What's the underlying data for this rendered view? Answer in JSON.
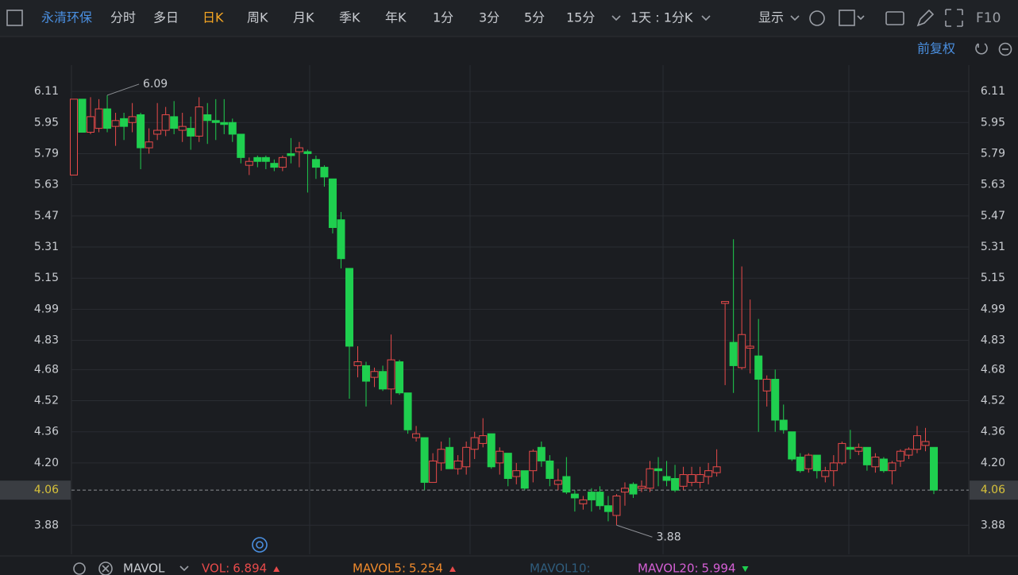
{
  "toolbar": {
    "stock": "永清环保",
    "periods": [
      "分时",
      "多日",
      "日K",
      "周K",
      "月K",
      "季K",
      "年K",
      "1分",
      "3分",
      "5分",
      "15分"
    ],
    "active_period": "日K",
    "range": "1天 : 1分K",
    "display": "显示",
    "f10": "F10"
  },
  "adjust": "前复权",
  "chart_data": {
    "type": "candlestick",
    "open": [
      5.68,
      6.07,
      5.9,
      5.92,
      6.02,
      5.93,
      5.97,
      5.95,
      5.99,
      5.82,
      5.89,
      5.91,
      5.98,
      5.91,
      5.92,
      5.88,
      5.99,
      5.96,
      5.95,
      5.95,
      5.89,
      5.73,
      5.77,
      5.77,
      5.74,
      5.72,
      5.79,
      5.8,
      5.8,
      5.76,
      5.72,
      5.66,
      5.45,
      5.2,
      4.7,
      4.7,
      4.64,
      4.67,
      4.58,
      4.72,
      4.56,
      4.33,
      4.33,
      4.1,
      4.2,
      4.28,
      4.17,
      4.18,
      4.27,
      4.3,
      4.35,
      4.2,
      4.25,
      4.13,
      4.16,
      4.16,
      4.28,
      4.21,
      4.09,
      4.13,
      4.04,
      3.99,
      4.05,
      4.05,
      3.98,
      3.93,
      4.05,
      4.09,
      4.07,
      4.07,
      4.17,
      4.13,
      4.12,
      4.08,
      4.1,
      4.1,
      4.13,
      4.15,
      5.02,
      4.82,
      4.69,
      4.79,
      4.75,
      4.57,
      4.63,
      4.42,
      4.36,
      4.23,
      4.17,
      4.24,
      4.13,
      4.16,
      4.2,
      4.28,
      4.26,
      4.28,
      4.18,
      4.22,
      4.16,
      4.21,
      4.24,
      4.27,
      4.29,
      4.28
    ],
    "high": [
      6.07,
      6.07,
      6.08,
      6.07,
      6.09,
      6.0,
      6.0,
      6.05,
      6.0,
      5.92,
      6.05,
      6.03,
      6.06,
      6.0,
      5.98,
      6.08,
      6.05,
      6.07,
      6.07,
      5.97,
      5.89,
      5.77,
      5.78,
      5.78,
      5.76,
      5.78,
      5.87,
      5.85,
      5.81,
      5.78,
      5.73,
      5.66,
      5.49,
      5.2,
      4.8,
      4.72,
      4.69,
      4.7,
      4.86,
      4.73,
      4.56,
      4.39,
      4.33,
      4.25,
      4.31,
      4.33,
      4.24,
      4.31,
      4.36,
      4.43,
      4.35,
      4.28,
      4.25,
      4.2,
      4.16,
      4.27,
      4.31,
      4.24,
      4.17,
      4.23,
      4.06,
      4.03,
      4.07,
      4.08,
      4.03,
      4.04,
      4.1,
      4.1,
      4.11,
      4.21,
      4.23,
      4.21,
      4.19,
      4.18,
      4.18,
      4.18,
      4.2,
      4.27,
      5.03,
      5.35,
      5.21,
      5.04,
      4.94,
      4.65,
      4.68,
      4.5,
      4.36,
      4.25,
      4.25,
      4.24,
      4.18,
      4.24,
      4.31,
      4.37,
      4.3,
      4.28,
      4.25,
      4.23,
      4.21,
      4.27,
      4.28,
      4.39,
      4.38,
      4.28
    ],
    "low": [
      5.68,
      5.9,
      5.89,
      5.9,
      5.9,
      5.83,
      5.86,
      5.9,
      5.71,
      5.79,
      5.86,
      5.88,
      5.89,
      5.85,
      5.81,
      5.85,
      5.84,
      5.86,
      5.89,
      5.85,
      5.74,
      5.68,
      5.72,
      5.71,
      5.7,
      5.7,
      5.74,
      5.72,
      5.59,
      5.66,
      5.62,
      5.38,
      5.2,
      4.53,
      4.64,
      4.49,
      4.59,
      4.57,
      4.5,
      4.55,
      4.35,
      4.31,
      4.06,
      4.1,
      4.16,
      4.17,
      4.14,
      4.14,
      4.22,
      4.28,
      4.17,
      4.14,
      4.08,
      4.09,
      4.06,
      4.1,
      4.18,
      4.08,
      4.06,
      4.04,
      3.95,
      3.96,
      3.95,
      3.96,
      3.9,
      3.88,
      3.98,
      4.02,
      4.05,
      4.05,
      4.08,
      4.08,
      4.05,
      4.06,
      4.08,
      4.07,
      4.09,
      4.13,
      4.6,
      4.56,
      4.68,
      4.66,
      4.36,
      4.49,
      4.36,
      4.35,
      4.21,
      4.15,
      4.15,
      4.12,
      4.1,
      4.08,
      4.19,
      4.22,
      4.24,
      4.16,
      4.15,
      4.15,
      4.09,
      4.18,
      4.22,
      4.25,
      4.26,
      4.04
    ],
    "close": [
      6.07,
      5.9,
      5.98,
      6.02,
      5.92,
      5.96,
      5.93,
      5.98,
      5.82,
      5.85,
      5.91,
      5.99,
      5.92,
      5.93,
      5.88,
      6.03,
      5.96,
      5.95,
      5.94,
      5.89,
      5.77,
      5.75,
      5.75,
      5.75,
      5.72,
      5.77,
      5.78,
      5.82,
      5.79,
      5.72,
      5.67,
      5.41,
      5.25,
      4.8,
      4.72,
      4.62,
      4.67,
      4.58,
      4.73,
      4.56,
      4.37,
      4.35,
      4.1,
      4.21,
      4.27,
      4.17,
      4.21,
      4.28,
      4.33,
      4.34,
      4.18,
      4.26,
      4.12,
      4.16,
      4.07,
      4.26,
      4.21,
      4.12,
      4.11,
      4.05,
      4.02,
      4.01,
      4.01,
      3.98,
      3.95,
      4.03,
      4.07,
      4.04,
      4.08,
      4.17,
      4.16,
      4.11,
      4.06,
      4.14,
      4.14,
      4.14,
      4.16,
      4.18,
      5.03,
      4.7,
      4.86,
      4.8,
      4.63,
      4.63,
      4.42,
      4.37,
      4.22,
      4.16,
      4.24,
      4.16,
      4.16,
      4.2,
      4.3,
      4.27,
      4.28,
      4.19,
      4.23,
      4.16,
      4.2,
      4.26,
      4.27,
      4.34,
      4.31,
      4.06
    ],
    "up_color": "#e84a4a",
    "down_color": "#1fcf4f",
    "ylim": [
      3.73,
      6.245
    ],
    "yticks": [
      6.11,
      5.95,
      5.79,
      5.63,
      5.47,
      5.31,
      5.15,
      4.99,
      4.83,
      {
        "value": 4.68,
        "label": "4.68"
      },
      4.52,
      4.36,
      {
        "value": 4.2,
        "label": "4.20"
      },
      3.88
    ],
    "last_price": 4.06,
    "high_annotation": 6.09,
    "low_annotation": 3.88,
    "grid": true
  },
  "indicator": {
    "name": "MAVOL",
    "items": [
      {
        "label": "VOL:",
        "value": 6.894,
        "color": "#e84a4a",
        "trend": "up"
      },
      {
        "label": "MAVOL5:",
        "value": 5.254,
        "color": "#f08a2c",
        "trend": "up"
      },
      {
        "label": "MAVOL10:",
        "color": "#2f5c7c"
      },
      {
        "label": "MAVOL20:",
        "value": 5.994,
        "color": "#d55fd5",
        "trend": "down"
      }
    ]
  }
}
